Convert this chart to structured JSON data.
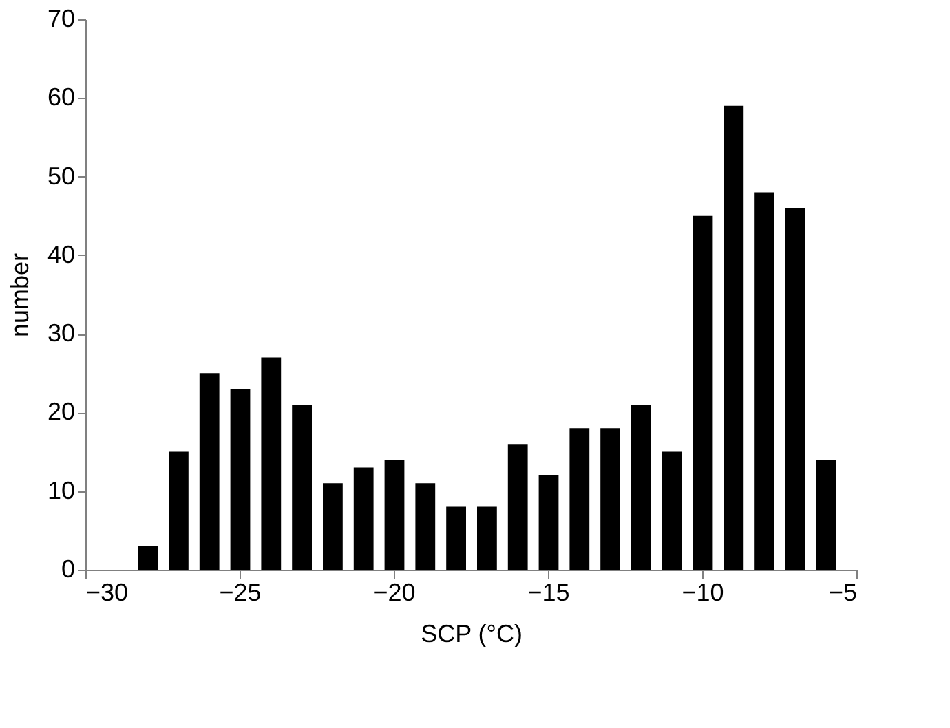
{
  "chart_data": {
    "type": "histogram",
    "xlabel": "SCP (°C)",
    "ylabel": "number",
    "bins": [
      -28.5,
      -27.5,
      -26.5,
      -25.5,
      -24.5,
      -23.5,
      -22.5,
      -21.5,
      -20.5,
      -19.5,
      -18.5,
      -17.5,
      -16.5,
      -15.5,
      -14.5,
      -13.5,
      -12.5,
      -11.5,
      -10.5,
      -9.5,
      -8.5,
      -7.5,
      -6.5,
      -5.5
    ],
    "values": [
      3,
      15,
      25,
      23,
      27,
      21,
      11,
      13,
      14,
      11,
      8,
      8,
      16,
      12,
      18,
      18,
      21,
      15,
      45,
      59,
      48,
      46,
      14
    ],
    "color": "#000000",
    "xlim": [
      -30,
      -5
    ],
    "xticks": [
      -30,
      -25,
      -20,
      -15,
      -10,
      -5
    ],
    "ylim": [
      0,
      70
    ],
    "yticks": [
      0,
      10,
      20,
      30,
      40,
      50,
      60,
      70
    ],
    "grid": false
  }
}
